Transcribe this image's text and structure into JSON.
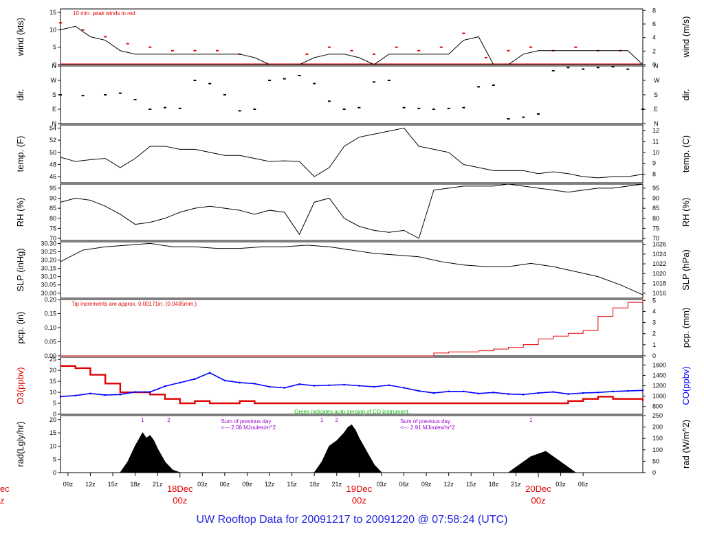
{
  "footer_title": "UW Rooftop Data for 20091217  to  20091220 @ 07:58:24  (UTC)",
  "colors": {
    "red": "#e00000",
    "blue": "#0000ff",
    "green": "#00bb00",
    "purple": "#9900cc",
    "black": "#000000",
    "title": "#2222dd"
  },
  "chart_data": [
    {
      "id": "wind",
      "type": "line",
      "ylabel": "wind (kts)",
      "ylabel_right": "wind (m/s)",
      "ylim": [
        0,
        16
      ],
      "yticks": [
        0,
        5,
        10,
        15
      ],
      "right_ylim": [
        0,
        8.23
      ],
      "right_yticks": [
        0,
        2,
        4,
        6,
        8
      ],
      "annotation": "10 min. peak winds in red",
      "series": [
        {
          "name": "10 min. peak winds",
          "color": "#e00000",
          "x": [
            0,
            3,
            6,
            9,
            12,
            15,
            18,
            21,
            24,
            27,
            30,
            33,
            36,
            39,
            42,
            45,
            48,
            51,
            54,
            57,
            60,
            63,
            66,
            69,
            72,
            75,
            78
          ],
          "y": [
            12,
            10,
            8,
            6,
            5,
            4,
            4,
            4,
            3,
            0,
            0,
            3,
            5,
            4,
            3,
            5,
            4,
            5,
            9,
            2,
            4,
            5,
            4,
            5,
            4,
            4,
            0
          ]
        },
        {
          "name": "wind",
          "color": "#000000",
          "x": [
            0,
            2,
            4,
            6,
            8,
            10,
            12,
            14,
            16,
            18,
            20,
            22,
            24,
            26,
            28,
            30,
            32,
            34,
            36,
            38,
            40,
            42,
            44,
            46,
            48,
            50,
            52,
            54,
            56,
            58,
            60,
            62,
            64,
            66,
            68,
            70,
            72,
            74,
            76,
            78
          ],
          "y": [
            10,
            11,
            8,
            7,
            4,
            3,
            3,
            3,
            3,
            3,
            3,
            3,
            3,
            2,
            0,
            0,
            0,
            2,
            3,
            3,
            2,
            0,
            3,
            3,
            3,
            3,
            3,
            7,
            8,
            0,
            0,
            3,
            4,
            4,
            4,
            4,
            4,
            4,
            4,
            0
          ]
        }
      ]
    },
    {
      "id": "dir",
      "type": "scatter",
      "ylabel": "dir.",
      "ylabel_right": "dir.",
      "yticks_labels": [
        "N",
        "E",
        "S",
        "W",
        "N"
      ],
      "ylim": [
        0,
        360
      ],
      "series": [
        {
          "name": "dir",
          "color": "#000000",
          "x": [
            0,
            3,
            6,
            8,
            10,
            12,
            14,
            16,
            18,
            20,
            22,
            24,
            26,
            28,
            30,
            32,
            34,
            36,
            38,
            40,
            42,
            44,
            46,
            48,
            50,
            52,
            54,
            56,
            58,
            60,
            62,
            64,
            66,
            68,
            70,
            72,
            74,
            76,
            78
          ],
          "y": [
            180,
            175,
            180,
            190,
            150,
            90,
            100,
            95,
            270,
            250,
            180,
            80,
            90,
            270,
            280,
            300,
            250,
            140,
            90,
            100,
            260,
            270,
            100,
            95,
            90,
            95,
            100,
            230,
            240,
            30,
            40,
            60,
            330,
            350,
            340,
            350,
            355,
            340,
            90
          ]
        }
      ]
    },
    {
      "id": "temp",
      "type": "line",
      "ylabel": "temp. (F)",
      "ylabel_right": "temp. (C)",
      "ylim": [
        45,
        54.5
      ],
      "yticks": [
        46,
        48,
        50,
        52,
        54
      ],
      "right_ylim": [
        7.22,
        12.5
      ],
      "right_yticks": [
        8,
        9,
        10,
        11,
        12
      ],
      "series": [
        {
          "name": "temp",
          "color": "#000000",
          "x": [
            0,
            2,
            4,
            6,
            8,
            10,
            12,
            14,
            16,
            18,
            20,
            22,
            24,
            26,
            28,
            30,
            32,
            34,
            36,
            38,
            40,
            42,
            44,
            46,
            48,
            50,
            52,
            54,
            56,
            58,
            60,
            62,
            64,
            66,
            68,
            70,
            72,
            74,
            76,
            78
          ],
          "y": [
            49.2,
            48.5,
            48.8,
            49,
            47.5,
            49,
            51,
            51,
            50.5,
            50.5,
            50,
            49.5,
            49.5,
            49,
            48.5,
            48.6,
            48.5,
            46,
            47.5,
            51,
            52.5,
            53,
            53.5,
            54,
            51,
            50.5,
            50,
            48,
            47.5,
            47,
            47,
            47,
            46.5,
            46.8,
            46.5,
            46,
            45.8,
            46,
            46,
            46.4
          ]
        }
      ]
    },
    {
      "id": "rh",
      "type": "line",
      "ylabel": "RH (%)",
      "ylabel_right": "RH (%)",
      "ylim": [
        69,
        97
      ],
      "yticks": [
        70,
        75,
        80,
        85,
        90,
        95
      ],
      "right_yticks": [
        70,
        75,
        80,
        85,
        90,
        95
      ],
      "series": [
        {
          "name": "RH",
          "color": "#000000",
          "x": [
            0,
            2,
            4,
            6,
            8,
            10,
            12,
            14,
            16,
            18,
            20,
            22,
            24,
            26,
            28,
            30,
            32,
            34,
            36,
            38,
            40,
            42,
            44,
            46,
            48,
            50,
            52,
            54,
            56,
            58,
            60,
            62,
            64,
            66,
            68,
            70,
            72,
            74,
            76,
            78
          ],
          "y": [
            88,
            90,
            89,
            86,
            82,
            77,
            78,
            80,
            83,
            85,
            86,
            85,
            84,
            82,
            84,
            83,
            72,
            88,
            90,
            80,
            76,
            74,
            73,
            74,
            70,
            94,
            95,
            96,
            96,
            96,
            97,
            96,
            95,
            94,
            93,
            94,
            95,
            95,
            96,
            97
          ]
        }
      ]
    },
    {
      "id": "slp",
      "type": "line",
      "ylabel": "SLP (inHg)",
      "ylabel_right": "SLP (hPa)",
      "ylim": [
        29.97,
        30.31
      ],
      "yticks": [
        30.0,
        30.05,
        30.1,
        30.15,
        30.2,
        30.25,
        30.3
      ],
      "right_ylim": [
        1015.0,
        1026.5
      ],
      "right_yticks": [
        1016,
        1018,
        1020,
        1022,
        1024,
        1026
      ],
      "series": [
        {
          "name": "SLP",
          "color": "#000000",
          "x": [
            0,
            3,
            6,
            9,
            12,
            15,
            18,
            21,
            24,
            27,
            30,
            33,
            36,
            39,
            42,
            45,
            48,
            51,
            54,
            57,
            60,
            63,
            66,
            69,
            72,
            75,
            78
          ],
          "y": [
            30.19,
            30.26,
            30.28,
            30.29,
            30.3,
            30.28,
            30.28,
            30.27,
            30.27,
            30.28,
            30.28,
            30.29,
            30.28,
            30.26,
            30.24,
            30.23,
            30.22,
            30.19,
            30.17,
            30.16,
            30.16,
            30.18,
            30.16,
            30.13,
            30.1,
            30.05,
            29.99
          ]
        }
      ]
    },
    {
      "id": "pcp",
      "type": "line",
      "ylabel": "pcp. (in)",
      "ylabel_right": "pcp. (mm)",
      "ylim": [
        0,
        0.2
      ],
      "yticks": [
        0.0,
        0.05,
        0.1,
        0.15,
        0.2
      ],
      "yticks_labels": [
        "0.00",
        "0.05",
        "0.10",
        "0.15",
        "0.20"
      ],
      "right_ylim": [
        0,
        5.08
      ],
      "right_yticks": [
        0,
        1,
        2,
        3,
        4,
        5
      ],
      "annotation": "Tip increments are approx. 0.00171in. (0.0435mm.)",
      "series": [
        {
          "name": "pcp",
          "color": "#e00000",
          "x": [
            0,
            48,
            50,
            52,
            56,
            58,
            60,
            62,
            64,
            66,
            68,
            70,
            72,
            74,
            76,
            78
          ],
          "y": [
            0,
            0,
            0.01,
            0.014,
            0.018,
            0.024,
            0.03,
            0.04,
            0.06,
            0.07,
            0.08,
            0.09,
            0.14,
            0.17,
            0.19,
            0.2
          ]
        }
      ]
    },
    {
      "id": "o3co",
      "type": "line",
      "ylabel": "O3(ppbv)",
      "ylabel_right": "CO(ppbv)",
      "ylim": [
        0,
        26
      ],
      "yticks": [
        0,
        5,
        10,
        15,
        20,
        25
      ],
      "right_ylim": [
        650,
        1750
      ],
      "right_yticks": [
        800,
        1000,
        1200,
        1400,
        1600
      ],
      "annotation": "Green indicates auto-zeroing of CO instrument.",
      "series": [
        {
          "name": "O3",
          "color": "#e00000",
          "x": [
            0,
            2,
            4,
            6,
            8,
            10,
            12,
            14,
            16,
            18,
            20,
            22,
            24,
            26,
            28,
            30,
            32,
            34,
            36,
            38,
            40,
            42,
            44,
            46,
            48,
            50,
            52,
            54,
            56,
            58,
            60,
            62,
            64,
            66,
            68,
            70,
            72,
            74,
            76,
            78
          ],
          "y": [
            22,
            21,
            18,
            14,
            10,
            10,
            9,
            7,
            5,
            6,
            5,
            5,
            6,
            5,
            5,
            5,
            5,
            5,
            5,
            5,
            5,
            5,
            5,
            5,
            5,
            5,
            5,
            5,
            5,
            5,
            5,
            5,
            5,
            5,
            6,
            7,
            8,
            7,
            7,
            6
          ]
        },
        {
          "name": "CO",
          "color": "#0000ff",
          "x": [
            0,
            2,
            4,
            6,
            8,
            10,
            12,
            14,
            16,
            18,
            20,
            22,
            24,
            26,
            28,
            30,
            32,
            34,
            36,
            38,
            40,
            42,
            44,
            46,
            48,
            50,
            52,
            54,
            56,
            58,
            60,
            62,
            64,
            66,
            68,
            70,
            72,
            74,
            76,
            78
          ],
          "y": [
            990,
            1010,
            1050,
            1020,
            1030,
            1080,
            1080,
            1190,
            1260,
            1330,
            1450,
            1300,
            1260,
            1240,
            1180,
            1160,
            1230,
            1200,
            1210,
            1220,
            1200,
            1180,
            1210,
            1160,
            1100,
            1060,
            1090,
            1090,
            1050,
            1070,
            1040,
            1030,
            1060,
            1080,
            1040,
            1060,
            1070,
            1090,
            1100,
            1110
          ]
        }
      ]
    },
    {
      "id": "rad",
      "type": "area",
      "ylabel": "rad(Lgly/hr)",
      "ylabel_right": "rad (W/m^2)",
      "ylim": [
        0,
        21.5
      ],
      "yticks": [
        0,
        5,
        10,
        15,
        20
      ],
      "right_ylim": [
        0,
        250
      ],
      "right_yticks": [
        0,
        50,
        100,
        150,
        200,
        250
      ],
      "series": [
        {
          "name": "rad",
          "color": "#000000",
          "x": [
            0,
            8,
            9,
            10,
            11,
            11.5,
            12,
            12.5,
            13,
            14,
            15,
            16,
            16,
            34,
            35,
            36,
            37,
            38,
            38.5,
            39,
            39.5,
            40,
            41,
            42,
            43,
            43,
            60,
            61,
            62,
            63,
            64,
            65,
            65.5,
            66,
            67,
            68,
            69,
            69,
            78
          ],
          "y": [
            0,
            0,
            4,
            10,
            15,
            13,
            14,
            12,
            9,
            4,
            1,
            0,
            0,
            0,
            4,
            10,
            12,
            15,
            17,
            18,
            16,
            13,
            8,
            3,
            0,
            0,
            0,
            2,
            4,
            6,
            7,
            8,
            7,
            6,
            4,
            2,
            0,
            0,
            0
          ]
        }
      ]
    }
  ],
  "panel_notes": {
    "rad_marker_1": "1",
    "rad_marker_2": "2",
    "rad_marker_3": "1",
    "rad_marker_4": "2",
    "rad_marker_5": "1",
    "sum_day1_title": "Sum of previous day",
    "sum_day1_value": "<--- 2.08 MJoules/m^2",
    "sum_day2_title": "Sum of previous day",
    "sum_day2_value": "<--- 2.91 MJoules/m^2"
  },
  "x_axis": {
    "xlim_hours": [
      0,
      78
    ],
    "tick_labels": [
      "09z",
      "12z",
      "15z",
      "18z",
      "21z",
      "03z",
      "06z",
      "09z",
      "12z",
      "15z",
      "18z",
      "21z",
      "03z",
      "06z",
      "09z",
      "12z",
      "15z",
      "18z",
      "21z",
      "03z",
      "06z"
    ],
    "tick_hours": [
      1,
      4,
      7,
      10,
      13,
      19,
      22,
      25,
      28,
      31,
      34,
      37,
      43,
      46,
      49,
      52,
      55,
      58,
      61,
      67,
      70
    ],
    "day_labels": [
      {
        "hour": 16,
        "date": "18Dec",
        "hour_label": "00z"
      },
      {
        "hour": 40,
        "date": "19Dec",
        "hour_label": "00z"
      },
      {
        "hour": 64,
        "date": "20Dec",
        "hour_label": "00z"
      }
    ],
    "left_edge_date": "ec",
    "left_edge_hour": "z"
  }
}
